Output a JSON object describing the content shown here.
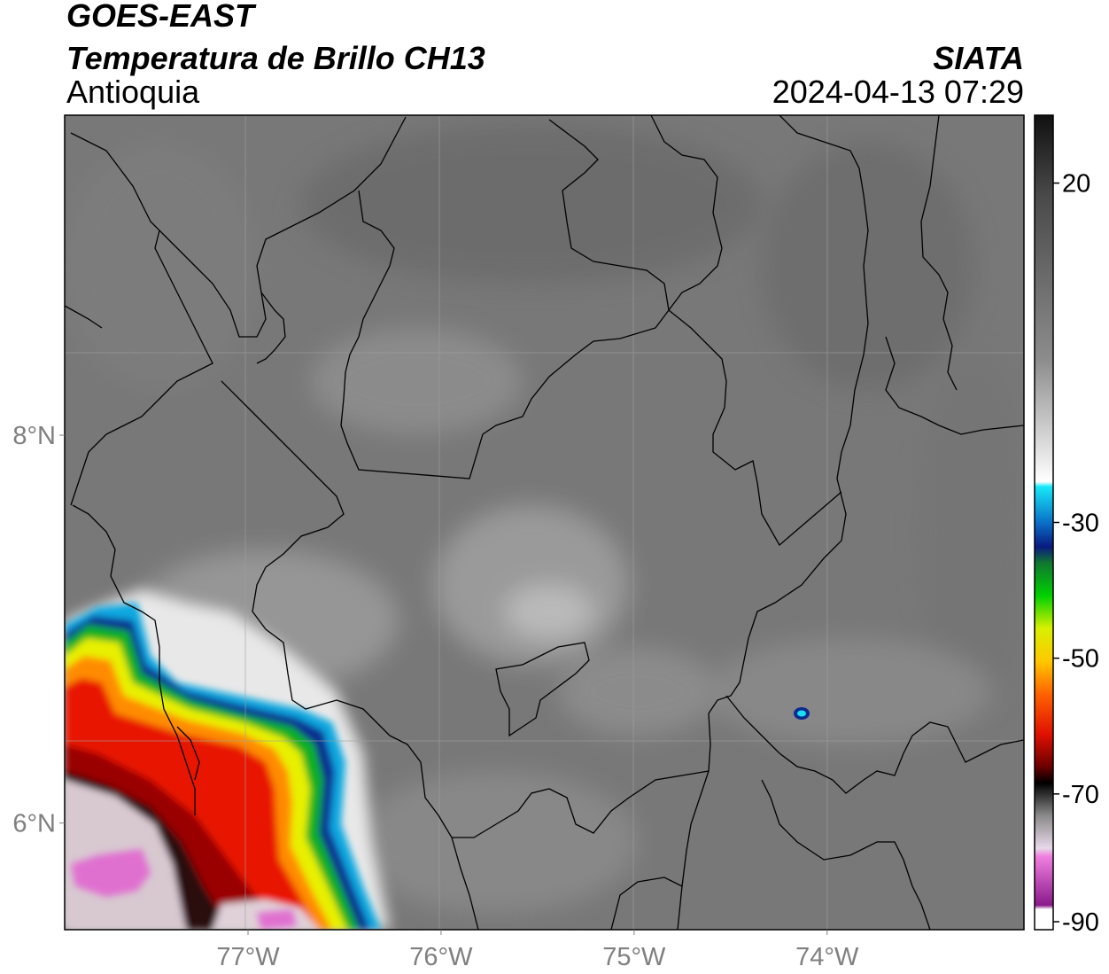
{
  "header": {
    "satellite": "GOES-EAST",
    "product": "Temperatura de Brillo CH13",
    "region": "Antioquia",
    "organization": "SIATA",
    "datetime": "2024-04-13 07:29"
  },
  "map": {
    "lon_range": [
      -77.95,
      -72.98
    ],
    "lat_range": [
      5.45,
      9.65
    ],
    "lon_ticks": [
      {
        "value": -77,
        "label": "77°W"
      },
      {
        "value": -76,
        "label": "76°W"
      },
      {
        "value": -75,
        "label": "75°W"
      },
      {
        "value": -74,
        "label": "74°W"
      }
    ],
    "lat_ticks": [
      {
        "value": 8,
        "label": "8°N"
      },
      {
        "value": 6,
        "label": "6°N"
      }
    ],
    "gridlines": true
  },
  "colorbar": {
    "units_range": [
      -90,
      30
    ],
    "ticks": [
      {
        "value": 20,
        "label": "20"
      },
      {
        "value": -30,
        "label": "-30"
      },
      {
        "value": -50,
        "label": "-50"
      },
      {
        "value": -70,
        "label": "-70"
      },
      {
        "value": -90,
        "label": "-90"
      }
    ],
    "colors": {
      "warm_top": "#1a1a1a",
      "gray_mid": "#7a7a7a",
      "white": "#ffffff",
      "cyan": "#18e0f0",
      "blue": "#0a2a8c",
      "green": "#00cc00",
      "yellow": "#ffee00",
      "orange": "#ff8a00",
      "red": "#e01000",
      "dark_red": "#5a0000",
      "black": "#000000",
      "pink": "#e060d0",
      "purple": "#8a1a8a"
    }
  }
}
